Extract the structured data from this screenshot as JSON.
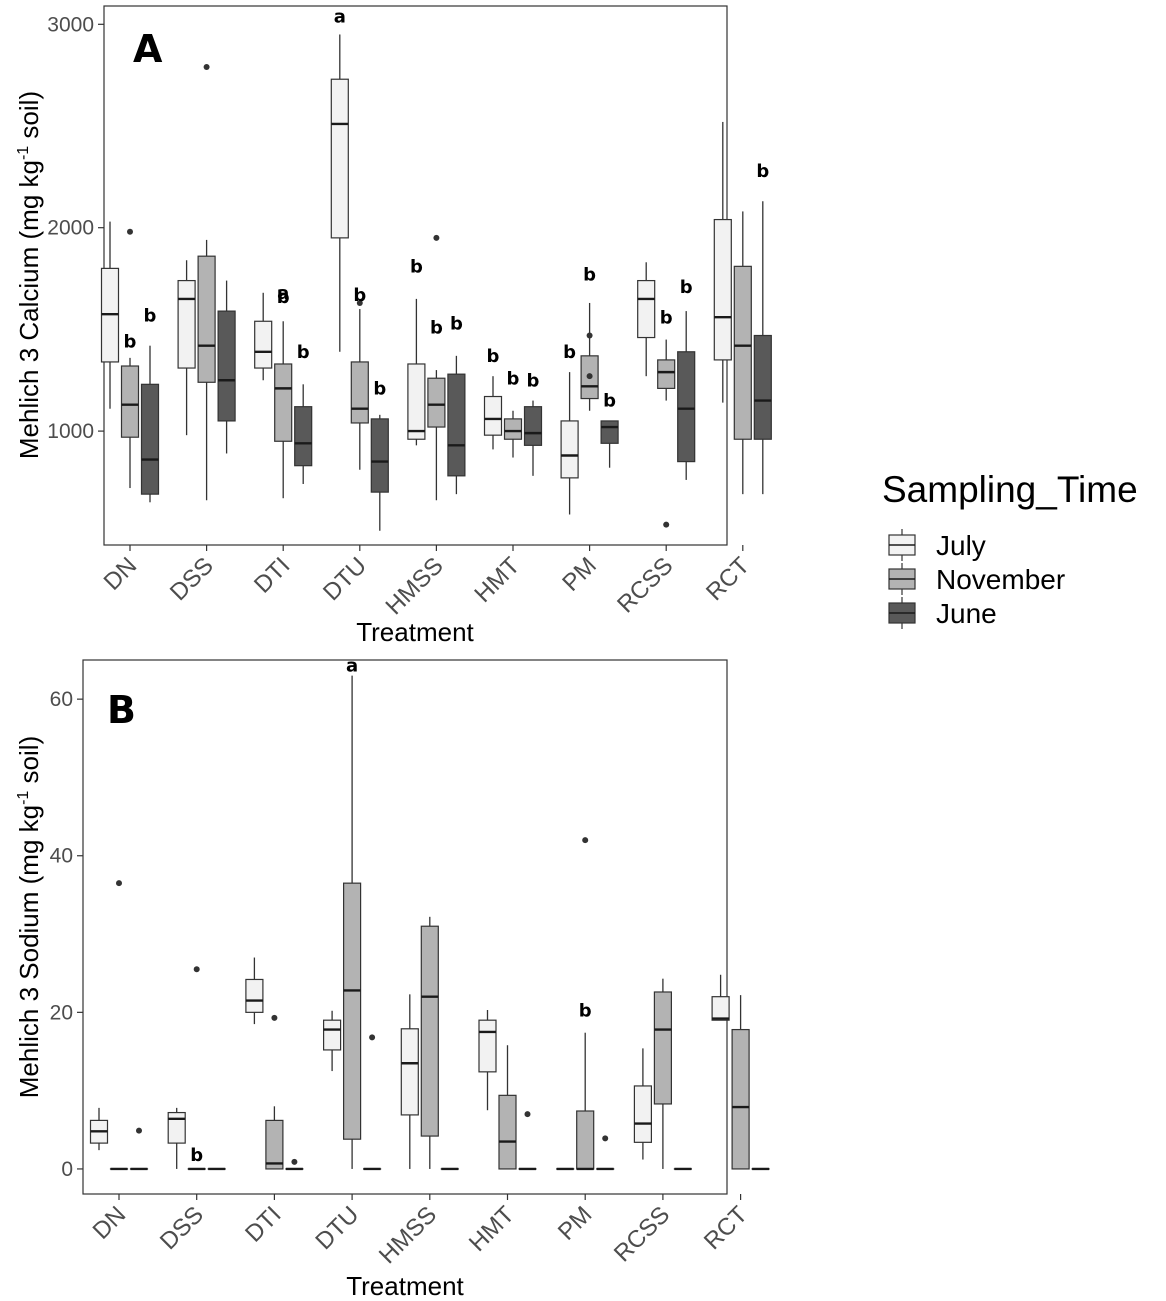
{
  "legend": {
    "title": "Sampling_Time",
    "items": [
      {
        "label": "July",
        "color": "#f2f2f2"
      },
      {
        "label": "November",
        "color": "#b3b3b3"
      },
      {
        "label": "June",
        "color": "#595959"
      }
    ]
  },
  "chart_data": [
    {
      "type": "boxplot",
      "panel_label": "A",
      "xlabel": "Treatment",
      "ylabel": "Mehlich 3 Calcium (mg kg-1 soil)",
      "ylabel_parts": {
        "pre": "Mehlich 3 Calcium (mg kg",
        "sup": "-1",
        "post": " soil)"
      },
      "ylim": [
        440,
        3090
      ],
      "yticks": [
        1000,
        2000,
        3000
      ],
      "categories": [
        "DN",
        "DSS",
        "DTI",
        "DTU",
        "HMSS",
        "HMT",
        "PM",
        "RCSS",
        "RCT"
      ],
      "series": [
        {
          "name": "July",
          "boxes": [
            {
              "min": 1110,
              "q1": 1340,
              "median": 1575,
              "q3": 1800,
              "max": 2030,
              "outliers": []
            },
            {
              "min": 980,
              "q1": 1310,
              "median": 1650,
              "q3": 1740,
              "max": 1840,
              "outliers": []
            },
            {
              "min": 1250,
              "q1": 1310,
              "median": 1390,
              "q3": 1540,
              "max": 1680,
              "outliers": []
            },
            {
              "min": 1390,
              "q1": 1950,
              "median": 2510,
              "q3": 2730,
              "max": 2950,
              "outliers": []
            },
            {
              "min": 930,
              "q1": 960,
              "median": 1000,
              "q3": 1330,
              "max": 1650,
              "outliers": []
            },
            {
              "min": 910,
              "q1": 980,
              "median": 1060,
              "q3": 1170,
              "max": 1270,
              "outliers": []
            },
            {
              "min": 590,
              "q1": 770,
              "median": 880,
              "q3": 1050,
              "max": 1290,
              "outliers": []
            },
            {
              "min": 1270,
              "q1": 1460,
              "median": 1650,
              "q3": 1740,
              "max": 1830,
              "outliers": []
            },
            {
              "min": 1140,
              "q1": 1350,
              "median": 1560,
              "q3": 2040,
              "max": 2520,
              "outliers": []
            }
          ]
        },
        {
          "name": "November",
          "boxes": [
            {
              "min": 720,
              "q1": 970,
              "median": 1130,
              "q3": 1320,
              "max": 1360,
              "outliers": [
                1980
              ]
            },
            {
              "min": 660,
              "q1": 1240,
              "median": 1420,
              "q3": 1860,
              "max": 1940,
              "outliers": [
                2790
              ]
            },
            {
              "min": 670,
              "q1": 950,
              "median": 1210,
              "q3": 1330,
              "max": 1540,
              "outliers": []
            },
            {
              "min": 810,
              "q1": 1040,
              "median": 1110,
              "q3": 1340,
              "max": 1600,
              "outliers": [
                1630
              ]
            },
            {
              "min": 660,
              "q1": 1020,
              "median": 1130,
              "q3": 1260,
              "max": 1300,
              "outliers": [
                1950
              ]
            },
            {
              "min": 870,
              "q1": 960,
              "median": 1000,
              "q3": 1060,
              "max": 1100,
              "outliers": []
            },
            {
              "min": 1100,
              "q1": 1160,
              "median": 1220,
              "q3": 1370,
              "max": 1630,
              "outliers": [
                1470,
                1270
              ]
            },
            {
              "min": 1150,
              "q1": 1210,
              "median": 1290,
              "q3": 1350,
              "max": 1450,
              "outliers": [
                540
              ]
            },
            {
              "min": 690,
              "q1": 960,
              "median": 1420,
              "q3": 1810,
              "max": 2080,
              "outliers": []
            }
          ]
        },
        {
          "name": "June",
          "boxes": [
            {
              "min": 650,
              "q1": 690,
              "median": 860,
              "q3": 1230,
              "max": 1420,
              "outliers": []
            },
            {
              "min": 890,
              "q1": 1050,
              "median": 1250,
              "q3": 1590,
              "max": 1740,
              "outliers": []
            },
            {
              "min": 740,
              "q1": 830,
              "median": 940,
              "q3": 1120,
              "max": 1230,
              "outliers": []
            },
            {
              "min": 510,
              "q1": 700,
              "median": 850,
              "q3": 1060,
              "max": 1080,
              "outliers": []
            },
            {
              "min": 690,
              "q1": 780,
              "median": 930,
              "q3": 1280,
              "max": 1370,
              "outliers": []
            },
            {
              "min": 780,
              "q1": 930,
              "median": 990,
              "q3": 1120,
              "max": 1150,
              "outliers": []
            },
            {
              "min": 820,
              "q1": 940,
              "median": 1020,
              "q3": 1050,
              "max": 1050,
              "outliers": []
            },
            {
              "min": 760,
              "q1": 850,
              "median": 1110,
              "q3": 1390,
              "max": 1590,
              "outliers": []
            },
            {
              "min": 690,
              "q1": 960,
              "median": 1150,
              "q3": 1470,
              "max": 2130,
              "outliers": []
            }
          ]
        }
      ],
      "annotations": [
        {
          "text": "a",
          "cat": 3,
          "series": 0,
          "y": 3010
        },
        {
          "text": "b",
          "cat": 0,
          "series": 1,
          "y": 1410
        },
        {
          "text": "b",
          "cat": 0,
          "series": 2,
          "y": 1540
        },
        {
          "text": "a",
          "cat": 2,
          "series": 1,
          "y": 1650
        },
        {
          "text": "b",
          "cat": 2,
          "series": 1,
          "y": 1630
        },
        {
          "text": "b",
          "cat": 2,
          "series": 2,
          "y": 1360
        },
        {
          "text": "b",
          "cat": 3,
          "series": 1,
          "y": 1640
        },
        {
          "text": "b",
          "cat": 3,
          "series": 2,
          "y": 1180
        },
        {
          "text": "b",
          "cat": 4,
          "series": 0,
          "y": 1780
        },
        {
          "text": "b",
          "cat": 4,
          "series": 1,
          "y": 1480
        },
        {
          "text": "b",
          "cat": 4,
          "series": 2,
          "y": 1500
        },
        {
          "text": "b",
          "cat": 5,
          "series": 0,
          "y": 1340
        },
        {
          "text": "b",
          "cat": 5,
          "series": 1,
          "y": 1230
        },
        {
          "text": "b",
          "cat": 5,
          "series": 2,
          "y": 1220
        },
        {
          "text": "b",
          "cat": 6,
          "series": 0,
          "y": 1360
        },
        {
          "text": "b",
          "cat": 6,
          "series": 1,
          "y": 1740
        },
        {
          "text": "b",
          "cat": 6,
          "series": 2,
          "y": 1120
        },
        {
          "text": "b",
          "cat": 7,
          "series": 1,
          "y": 1530
        },
        {
          "text": "b",
          "cat": 7,
          "series": 2,
          "y": 1680
        },
        {
          "text": "b",
          "cat": 8,
          "series": 2,
          "y": 2250
        }
      ]
    },
    {
      "type": "boxplot",
      "panel_label": "B",
      "xlabel": "Treatment",
      "ylabel": "Mehlich 3 Sodium (mg kg-1 soil)",
      "ylabel_parts": {
        "pre": "Mehlich 3 Sodium (mg kg",
        "sup": "-1",
        "post": " soil)"
      },
      "ylim": [
        -3.2,
        65
      ],
      "yticks": [
        0,
        20,
        40,
        60
      ],
      "categories": [
        "DN",
        "DSS",
        "DTI",
        "DTU",
        "HMSS",
        "HMT",
        "PM",
        "RCSS",
        "RCT"
      ],
      "series": [
        {
          "name": "July",
          "boxes": [
            {
              "min": 2.4,
              "q1": 3.3,
              "median": 4.8,
              "q3": 6.2,
              "max": 7.8,
              "outliers": []
            },
            {
              "min": 0,
              "q1": 3.3,
              "median": 6.4,
              "q3": 7.2,
              "max": 7.8,
              "outliers": []
            },
            {
              "min": 18.5,
              "q1": 20,
              "median": 21.5,
              "q3": 24.2,
              "max": 27,
              "outliers": []
            },
            {
              "min": 12.5,
              "q1": 15.2,
              "median": 17.8,
              "q3": 19,
              "max": 20.2,
              "outliers": []
            },
            {
              "min": 0,
              "q1": 6.9,
              "median": 13.5,
              "q3": 17.9,
              "max": 22.3,
              "outliers": []
            },
            {
              "min": 7.5,
              "q1": 12.4,
              "median": 17.5,
              "q3": 19,
              "max": 20.3,
              "outliers": []
            },
            {
              "min": 0,
              "q1": 0,
              "median": 0,
              "q3": 0,
              "max": 0,
              "outliers": []
            },
            {
              "min": 1.2,
              "q1": 3.4,
              "median": 5.8,
              "q3": 10.6,
              "max": 15.4,
              "outliers": []
            },
            {
              "min": 19,
              "q1": 19,
              "median": 19.2,
              "q3": 22,
              "max": 24.8,
              "outliers": []
            }
          ]
        },
        {
          "name": "November",
          "boxes": [
            {
              "min": 0,
              "q1": 0,
              "median": 0,
              "q3": 0,
              "max": 0,
              "outliers": [
                36.5
              ]
            },
            {
              "min": 0,
              "q1": 0,
              "median": 0,
              "q3": 0,
              "max": 0,
              "outliers": [
                25.5
              ]
            },
            {
              "min": 0,
              "q1": 0,
              "median": 0.7,
              "q3": 6.2,
              "max": 8,
              "outliers": [
                19.3
              ]
            },
            {
              "min": 0,
              "q1": 3.8,
              "median": 22.8,
              "q3": 36.5,
              "max": 63,
              "outliers": []
            },
            {
              "min": 0,
              "q1": 4.2,
              "median": 22,
              "q3": 31,
              "max": 32.2,
              "outliers": []
            },
            {
              "min": 0,
              "q1": 0,
              "median": 3.5,
              "q3": 9.4,
              "max": 15.8,
              "outliers": []
            },
            {
              "min": 0,
              "q1": 0,
              "median": 0,
              "q3": 7.4,
              "max": 17.4,
              "outliers": [
                42
              ]
            },
            {
              "min": 0,
              "q1": 8.3,
              "median": 17.8,
              "q3": 22.6,
              "max": 24.3,
              "outliers": []
            },
            {
              "min": 0,
              "q1": 0,
              "median": 7.9,
              "q3": 17.8,
              "max": 22.2,
              "outliers": []
            }
          ]
        },
        {
          "name": "June",
          "boxes": [
            {
              "min": 0,
              "q1": 0,
              "median": 0,
              "q3": 0,
              "max": 0,
              "outliers": [
                4.9
              ]
            },
            {
              "min": 0,
              "q1": 0,
              "median": 0,
              "q3": 0,
              "max": 0,
              "outliers": []
            },
            {
              "min": 0,
              "q1": 0,
              "median": 0,
              "q3": 0,
              "max": 0,
              "outliers": [
                0.9
              ]
            },
            {
              "min": 0,
              "q1": 0,
              "median": 0,
              "q3": 0,
              "max": 0,
              "outliers": [
                16.8
              ]
            },
            {
              "min": 0,
              "q1": 0,
              "median": 0,
              "q3": 0,
              "max": 0,
              "outliers": []
            },
            {
              "min": 0,
              "q1": 0,
              "median": 0,
              "q3": 0,
              "max": 0,
              "outliers": [
                7
              ]
            },
            {
              "min": 0,
              "q1": 0,
              "median": 0,
              "q3": 0,
              "max": 0,
              "outliers": [
                3.9
              ]
            },
            {
              "min": 0,
              "q1": 0,
              "median": 0,
              "q3": 0,
              "max": 0,
              "outliers": []
            },
            {
              "min": 0,
              "q1": 0,
              "median": 0,
              "q3": 0,
              "max": 0,
              "outliers": []
            }
          ]
        }
      ],
      "annotations": [
        {
          "text": "a",
          "cat": 3,
          "series": 1,
          "y": 63.5
        },
        {
          "text": "b",
          "cat": 1,
          "series": 1,
          "y": 1
        },
        {
          "text": "b",
          "cat": 6,
          "series": 1,
          "y": 19.5
        }
      ]
    }
  ]
}
